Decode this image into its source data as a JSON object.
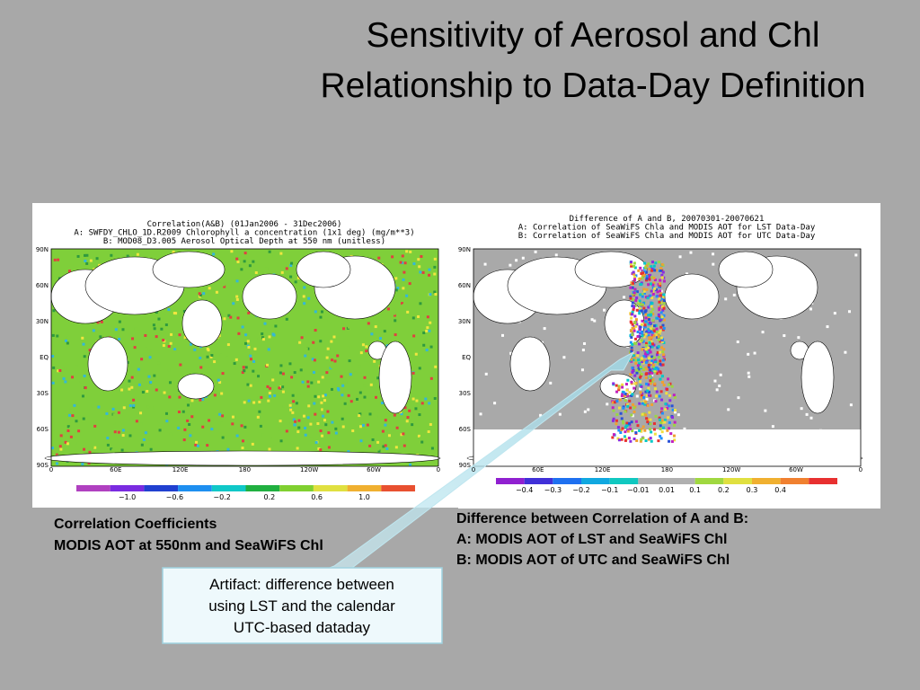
{
  "title": [
    "Sensitivity of Aerosol and Chl",
    "Relationship to Data-Day Definition"
  ],
  "left_map": {
    "title_lines": [
      "Correlation(A&B) (01Jan2006 - 31Dec2006)",
      "A: SWFDY_CHLO_1D.R2009 Chlorophyll a concentration (1x1 deg) (mg/m**3)",
      "B: MOD08_D3.005 Aerosol Optical Depth at 550 nm (unitless)"
    ],
    "lat_labels": [
      "90N",
      "60N",
      "30N",
      "EQ",
      "30S",
      "60S",
      "90S"
    ],
    "lon_labels": [
      "0",
      "60E",
      "120E",
      "180",
      "120W",
      "60W",
      "0"
    ],
    "colorbar_labels": [
      "−1.0",
      "−0.6",
      "−0.2",
      "0.2",
      "0.6",
      "1.0"
    ]
  },
  "right_map": {
    "title_lines": [
      "Difference of A and B, 20070301-20070621",
      "A: Correlation of SeaWiFS Chla and MODIS AOT for LST Data-Day",
      "B: Correlation of SeaWiFS Chla and MODIS AOT for UTC Data-Day"
    ],
    "lat_labels": [
      "90N",
      "60N",
      "30N",
      "EQ",
      "30S",
      "60S",
      "90S"
    ],
    "lon_labels": [
      "0",
      "60E",
      "120E",
      "180",
      "120W",
      "60W",
      "0"
    ],
    "colorbar_labels": [
      "−0.4",
      "−0.3",
      "−0.2",
      "−0.1",
      "−0.01",
      "0.01",
      "0.1",
      "0.2",
      "0.3",
      "0.4"
    ]
  },
  "left_caption": [
    "Correlation Coefficients",
    "MODIS AOT at 550nm and SeaWiFS Chl"
  ],
  "right_caption": [
    "Difference between Correlation of A and B:",
    "A: MODIS AOT  of  LST  and SeaWiFS Chl",
    "B: MODIS AOT  of  UTC   and SeaWiFS Chl"
  ],
  "callout": [
    "Artifact: difference between",
    "using LST and the calendar",
    "UTC-based dataday"
  ]
}
